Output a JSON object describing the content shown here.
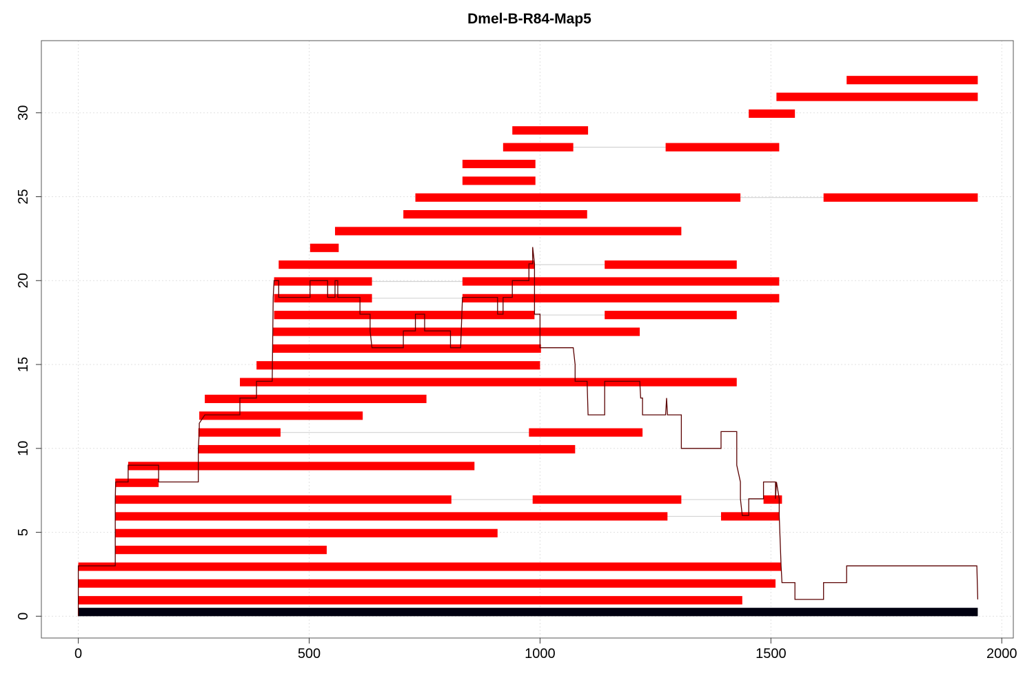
{
  "chart_data": {
    "type": "bar",
    "title": "Dmel-B-R84-Map5",
    "xlabel": "",
    "ylabel": "",
    "xlim": [
      -80,
      2025
    ],
    "ylim": [
      -1.3,
      34.3
    ],
    "grid": true,
    "x_ticks": [
      0,
      500,
      1000,
      1500,
      2000
    ],
    "y_ticks": [
      0,
      5,
      10,
      15,
      20,
      25,
      30
    ],
    "colors": {
      "segment": "#ff0000",
      "gap_line": "#d3d3d3",
      "reference": "#000010",
      "coverage": "#5a0000",
      "grid": "#e0e0e0"
    },
    "reference": {
      "start": 0,
      "end": 1948,
      "y": 0.5
    },
    "molecules": [
      {
        "y": 1.2,
        "segments": [
          [
            0,
            1438
          ]
        ]
      },
      {
        "y": 2.2,
        "segments": [
          [
            0,
            1510
          ]
        ]
      },
      {
        "y": 3.2,
        "segments": [
          [
            0,
            1522
          ]
        ]
      },
      {
        "y": 4.2,
        "segments": [
          [
            80,
            538
          ]
        ]
      },
      {
        "y": 5.2,
        "segments": [
          [
            80,
            908
          ]
        ]
      },
      {
        "y": 6.2,
        "segments": [
          [
            80,
            1276
          ],
          [
            1392,
            1518
          ]
        ]
      },
      {
        "y": 7.2,
        "segments": [
          [
            80,
            808
          ],
          [
            984,
            1306
          ],
          [
            1484,
            1524
          ]
        ]
      },
      {
        "y": 8.2,
        "segments": [
          [
            80,
            174
          ]
        ]
      },
      {
        "y": 9.2,
        "segments": [
          [
            108,
            858
          ]
        ]
      },
      {
        "y": 10.2,
        "segments": [
          [
            260,
            1076
          ]
        ]
      },
      {
        "y": 11.2,
        "segments": [
          [
            260,
            438
          ],
          [
            976,
            1222
          ]
        ]
      },
      {
        "y": 12.2,
        "segments": [
          [
            262,
            616
          ]
        ]
      },
      {
        "y": 13.2,
        "segments": [
          [
            274,
            754
          ]
        ]
      },
      {
        "y": 14.2,
        "segments": [
          [
            350,
            1426
          ]
        ]
      },
      {
        "y": 15.2,
        "segments": [
          [
            386,
            1000
          ]
        ]
      },
      {
        "y": 16.2,
        "segments": [
          [
            420,
            1002
          ]
        ]
      },
      {
        "y": 17.2,
        "segments": [
          [
            422,
            1216
          ]
        ]
      },
      {
        "y": 18.2,
        "segments": [
          [
            424,
            988
          ],
          [
            1140,
            1426
          ]
        ]
      },
      {
        "y": 19.2,
        "segments": [
          [
            424,
            636
          ],
          [
            832,
            1518
          ]
        ]
      },
      {
        "y": 20.2,
        "segments": [
          [
            424,
            636
          ],
          [
            832,
            1518
          ]
        ]
      },
      {
        "y": 21.2,
        "segments": [
          [
            434,
            988
          ],
          [
            1140,
            1426
          ]
        ]
      },
      {
        "y": 22.2,
        "segments": [
          [
            502,
            564
          ]
        ]
      },
      {
        "y": 23.2,
        "segments": [
          [
            556,
            1306
          ]
        ]
      },
      {
        "y": 24.2,
        "segments": [
          [
            704,
            1102
          ]
        ]
      },
      {
        "y": 25.2,
        "segments": [
          [
            730,
            1434
          ],
          [
            1614,
            1948
          ]
        ]
      },
      {
        "y": 26.2,
        "segments": [
          [
            832,
            990
          ]
        ]
      },
      {
        "y": 27.2,
        "segments": [
          [
            832,
            990
          ]
        ]
      },
      {
        "y": 28.2,
        "segments": [
          [
            920,
            1072
          ],
          [
            1272,
            1518
          ]
        ]
      },
      {
        "y": 29.2,
        "segments": [
          [
            940,
            1104
          ]
        ]
      },
      {
        "y": 30.2,
        "segments": [
          [
            1452,
            1552
          ]
        ]
      },
      {
        "y": 31.2,
        "segments": [
          [
            1512,
            1948
          ]
        ]
      },
      {
        "y": 32.2,
        "segments": [
          [
            1664,
            1948
          ]
        ]
      }
    ],
    "coverage": [
      [
        0,
        0
      ],
      [
        0,
        3
      ],
      [
        80,
        3
      ],
      [
        80,
        7
      ],
      [
        81,
        8
      ],
      [
        108,
        8
      ],
      [
        108,
        9
      ],
      [
        174,
        9
      ],
      [
        174,
        8
      ],
      [
        260,
        8
      ],
      [
        260,
        10
      ],
      [
        262,
        11
      ],
      [
        262,
        11.5
      ],
      [
        274,
        12
      ],
      [
        350,
        12
      ],
      [
        350,
        13
      ],
      [
        386,
        13
      ],
      [
        386,
        14
      ],
      [
        420,
        14
      ],
      [
        422,
        19
      ],
      [
        424,
        20
      ],
      [
        434,
        20
      ],
      [
        434,
        19
      ],
      [
        502,
        19
      ],
      [
        502,
        20
      ],
      [
        540,
        20
      ],
      [
        540,
        19
      ],
      [
        556,
        19
      ],
      [
        556,
        20
      ],
      [
        562,
        20
      ],
      [
        562,
        19
      ],
      [
        610,
        19
      ],
      [
        610,
        18
      ],
      [
        632,
        18
      ],
      [
        632,
        17
      ],
      [
        636,
        16
      ],
      [
        704,
        16
      ],
      [
        704,
        17
      ],
      [
        730,
        17
      ],
      [
        730,
        18
      ],
      [
        750,
        18
      ],
      [
        750,
        17
      ],
      [
        806,
        17
      ],
      [
        806,
        16
      ],
      [
        828,
        16
      ],
      [
        832,
        19
      ],
      [
        908,
        19
      ],
      [
        908,
        18
      ],
      [
        920,
        18
      ],
      [
        920,
        19
      ],
      [
        940,
        19
      ],
      [
        940,
        20
      ],
      [
        976,
        20
      ],
      [
        976,
        21
      ],
      [
        984,
        21
      ],
      [
        984,
        22
      ],
      [
        988,
        21
      ],
      [
        988,
        18
      ],
      [
        1000,
        18
      ],
      [
        1000,
        16
      ],
      [
        1072,
        16
      ],
      [
        1076,
        15
      ],
      [
        1076,
        14
      ],
      [
        1102,
        14
      ],
      [
        1104,
        12
      ],
      [
        1140,
        12
      ],
      [
        1140,
        14
      ],
      [
        1216,
        14
      ],
      [
        1218,
        13
      ],
      [
        1222,
        13
      ],
      [
        1222,
        12
      ],
      [
        1272,
        12
      ],
      [
        1274,
        13
      ],
      [
        1276,
        12
      ],
      [
        1306,
        12
      ],
      [
        1306,
        10
      ],
      [
        1392,
        10
      ],
      [
        1392,
        11
      ],
      [
        1426,
        11
      ],
      [
        1426,
        9
      ],
      [
        1434,
        8
      ],
      [
        1434,
        7
      ],
      [
        1438,
        6
      ],
      [
        1452,
        6
      ],
      [
        1452,
        7
      ],
      [
        1484,
        7
      ],
      [
        1484,
        8
      ],
      [
        1510,
        8
      ],
      [
        1510,
        7
      ],
      [
        1512,
        8
      ],
      [
        1518,
        7
      ],
      [
        1518,
        6
      ],
      [
        1522,
        3
      ],
      [
        1524,
        2
      ],
      [
        1552,
        2
      ],
      [
        1552,
        1
      ],
      [
        1614,
        1
      ],
      [
        1614,
        2
      ],
      [
        1664,
        2
      ],
      [
        1664,
        3
      ],
      [
        1946,
        3
      ],
      [
        1948,
        1
      ]
    ]
  }
}
